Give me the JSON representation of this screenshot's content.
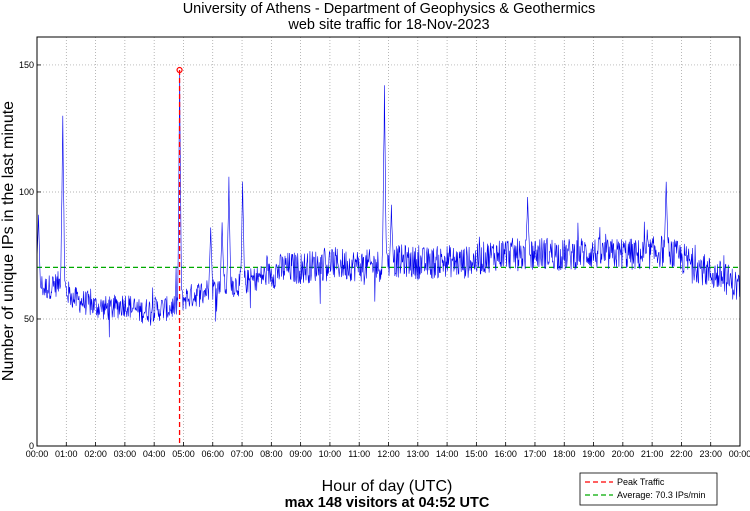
{
  "chart_data": {
    "type": "line",
    "title": "University of Athens - Department of Geophysics & Geothermics",
    "subtitle": "web site traffic for 18-Nov-2023",
    "xlabel": "Hour of day (UTC)",
    "ylabel": "Number of unique IPs in the last minute",
    "info": "max 148 visitors at 04:52 UTC",
    "x_ticks": [
      "00:00",
      "01:00",
      "02:00",
      "03:00",
      "04:00",
      "05:00",
      "06:00",
      "07:00",
      "08:00",
      "09:00",
      "10:00",
      "11:00",
      "12:00",
      "13:00",
      "14:00",
      "15:00",
      "16:00",
      "17:00",
      "18:00",
      "19:00",
      "20:00",
      "21:00",
      "22:00",
      "23:00",
      "00:00"
    ],
    "y_ticks": [
      0,
      50,
      100,
      150
    ],
    "xlim": [
      0,
      24
    ],
    "ylim": [
      0,
      161
    ],
    "grid": true,
    "legend_position": "bottom-right",
    "peak": {
      "x_hours": 4.867,
      "y": 148,
      "label": "Peak Traffic",
      "color": "#ff0000"
    },
    "average": {
      "y": 70.3,
      "label": "Average: 70.3 IPs/min",
      "color": "#00aa00"
    },
    "series": [
      {
        "color": "#0000ee",
        "x_hours": [
          0,
          0.1,
          0.25,
          0.5,
          0.75,
          0.85,
          0.9,
          1.0,
          1.25,
          1.5,
          1.75,
          2.0,
          2.5,
          3.0,
          3.5,
          4.0,
          4.5,
          4.85,
          5.0,
          5.5,
          5.95,
          6.5,
          7.0,
          7.5,
          8.0,
          8.5,
          9.0,
          10.0,
          11.0,
          11.85,
          12.0,
          12.5,
          13.0,
          13.5,
          14.0,
          14.5,
          15.0,
          15.5,
          16.0,
          16.5,
          17.0,
          17.5,
          18.0,
          18.5,
          19.0,
          19.5,
          20.0,
          20.5,
          21.0,
          21.5,
          21.75,
          22.0,
          22.5,
          23.0,
          23.5,
          24.0
        ],
        "values": [
          68,
          64,
          62,
          63,
          64,
          70,
          66,
          61,
          58,
          57,
          56,
          55,
          54,
          56,
          53,
          54,
          54,
          56,
          58,
          60,
          62,
          63,
          64,
          66,
          68,
          70,
          70,
          72,
          71,
          71,
          72,
          73,
          72,
          72,
          73,
          72,
          73,
          75,
          76,
          75,
          76,
          76,
          75,
          76,
          76,
          75,
          76,
          75,
          76,
          77,
          75,
          74,
          71,
          68,
          66,
          62
        ],
        "spikes": [
          {
            "x_hours": 0.05,
            "y": 91
          },
          {
            "x_hours": 0.88,
            "y": 130
          },
          {
            "x_hours": 4.87,
            "y": 148
          },
          {
            "x_hours": 5.93,
            "y": 86
          },
          {
            "x_hours": 6.32,
            "y": 88
          },
          {
            "x_hours": 6.55,
            "y": 106
          },
          {
            "x_hours": 7.02,
            "y": 104
          },
          {
            "x_hours": 11.86,
            "y": 142
          },
          {
            "x_hours": 12.1,
            "y": 95
          },
          {
            "x_hours": 16.75,
            "y": 98
          },
          {
            "x_hours": 21.48,
            "y": 104
          }
        ]
      }
    ]
  }
}
